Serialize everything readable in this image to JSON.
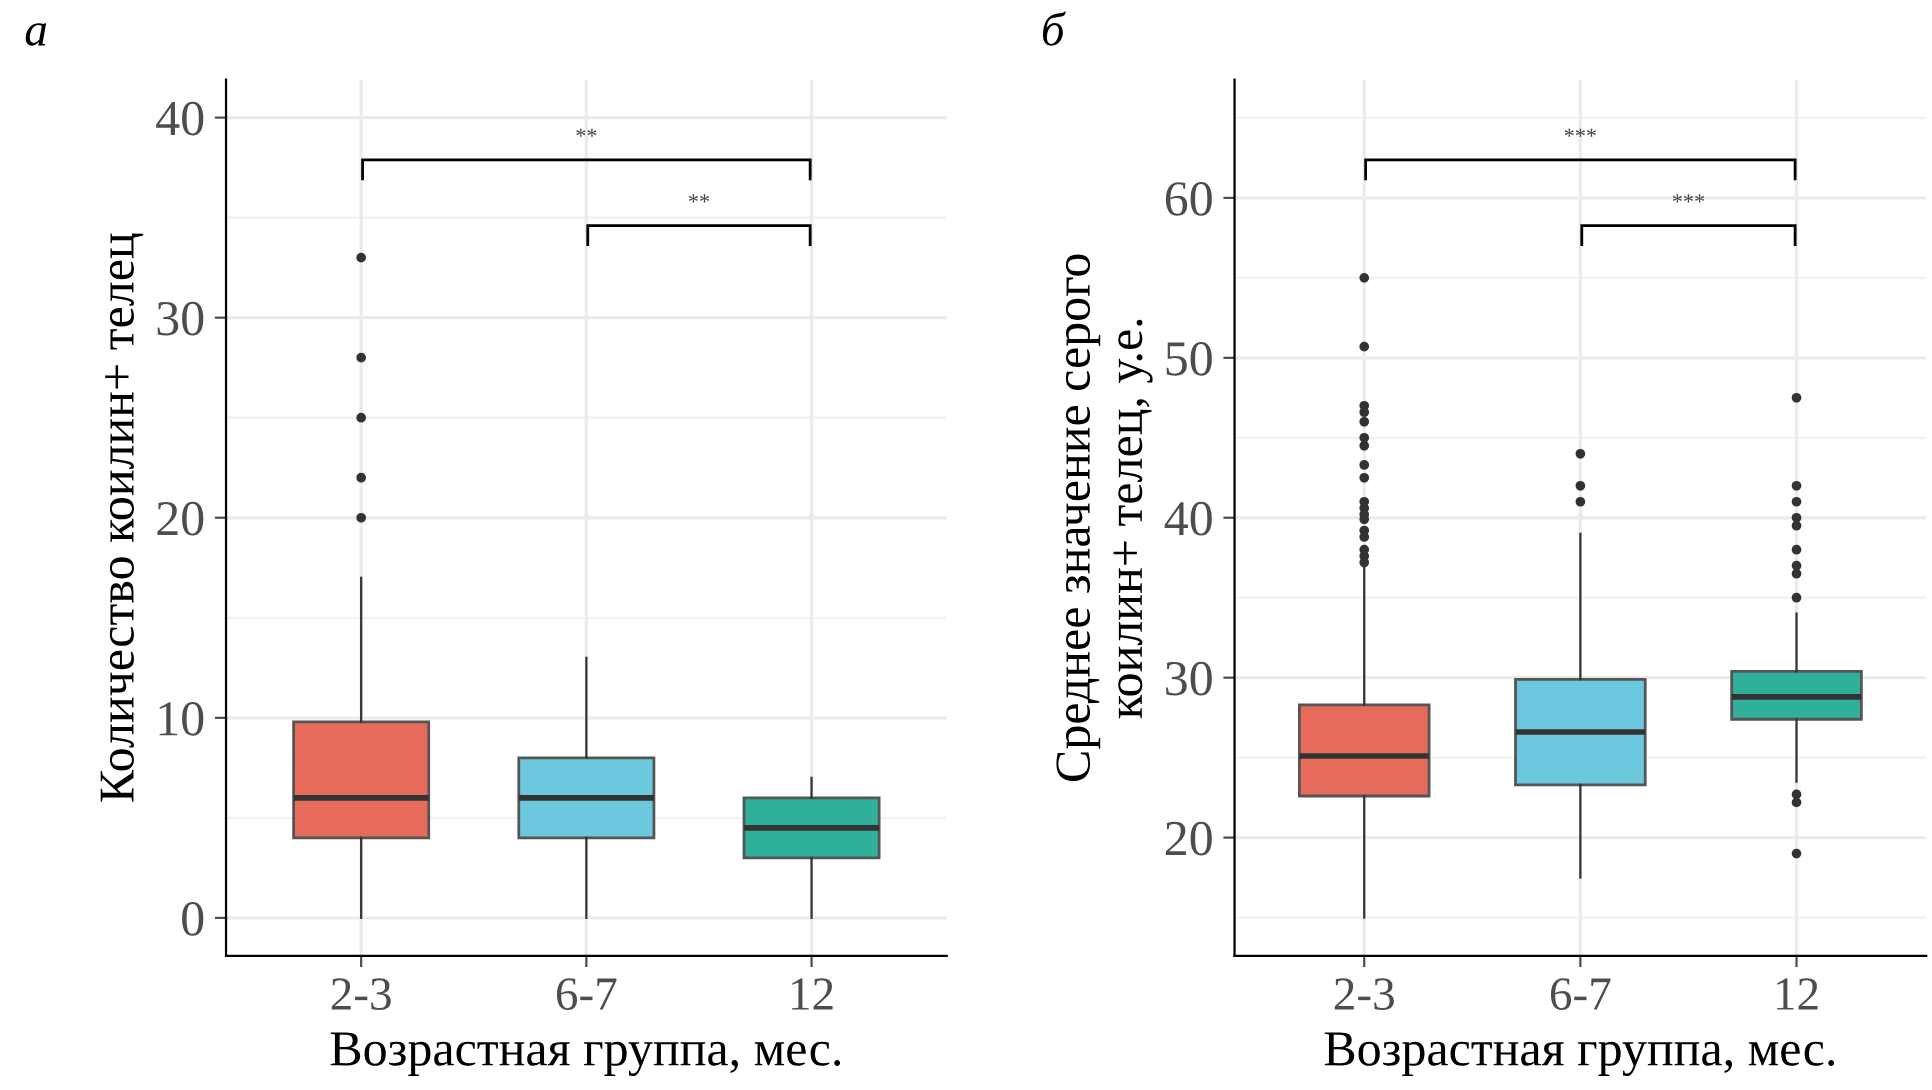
{
  "chart_data": [
    {
      "type": "box",
      "title": "а",
      "xlabel": "Возрастная группа, мес.",
      "ylabel": "Количество коилин+ телец",
      "categories": [
        "2-3",
        "6-7",
        "12"
      ],
      "colors": [
        "#e76b5a",
        "#6cc8dd",
        "#2fb09a"
      ],
      "boxes": [
        {
          "low": 0,
          "q1": 4,
          "median": 6,
          "q3": 9.8,
          "high": 17,
          "outliers": [
            20,
            22,
            25,
            28,
            33
          ]
        },
        {
          "low": 0,
          "q1": 4,
          "median": 6,
          "q3": 8,
          "high": 13
        },
        {
          "low": 0,
          "q1": 3,
          "median": 4.5,
          "q3": 6,
          "high": 7
        }
      ],
      "ylim": [
        -1.9,
        41.9
      ],
      "yticks": [
        0,
        10,
        20,
        30,
        40
      ],
      "grid": true,
      "annotations": [
        "**",
        "**"
      ]
    },
    {
      "type": "box",
      "title": "б",
      "xlabel": "Возрастная группа, мес.",
      "ylabel": "Среднее значение серого\nкоилин+ телец, у.е.",
      "categories": [
        "2-3",
        "6-7",
        "12"
      ],
      "colors": [
        "#e76b5a",
        "#6cc8dd",
        "#2fb09a"
      ],
      "boxes": [
        {
          "low": 15,
          "q1": 22.6,
          "median": 25.1,
          "q3": 28.3,
          "high": 37,
          "outliers": [
            37.2,
            37.6,
            38,
            38.8,
            39.2,
            39.9,
            40.2,
            40.6,
            41,
            42.5,
            43.3,
            44.5,
            45,
            46,
            46.6,
            47,
            50.7,
            55
          ]
        },
        {
          "low": 17.5,
          "q1": 23.3,
          "median": 26.6,
          "q3": 29.9,
          "high": 39,
          "outliers": [
            41,
            42,
            44
          ]
        },
        {
          "low": 23.5,
          "q1": 27.4,
          "median": 28.8,
          "q3": 30.4,
          "high": 34,
          "outliers": [
            19,
            22.2,
            22.7,
            35,
            36.5,
            37,
            38,
            39.5,
            40,
            41,
            42,
            47.5
          ]
        }
      ],
      "ylim": [
        12.6,
        67.4
      ],
      "yticks": [
        20,
        30,
        40,
        50,
        60
      ],
      "grid": true,
      "annotations": [
        "***",
        "***"
      ]
    }
  ]
}
